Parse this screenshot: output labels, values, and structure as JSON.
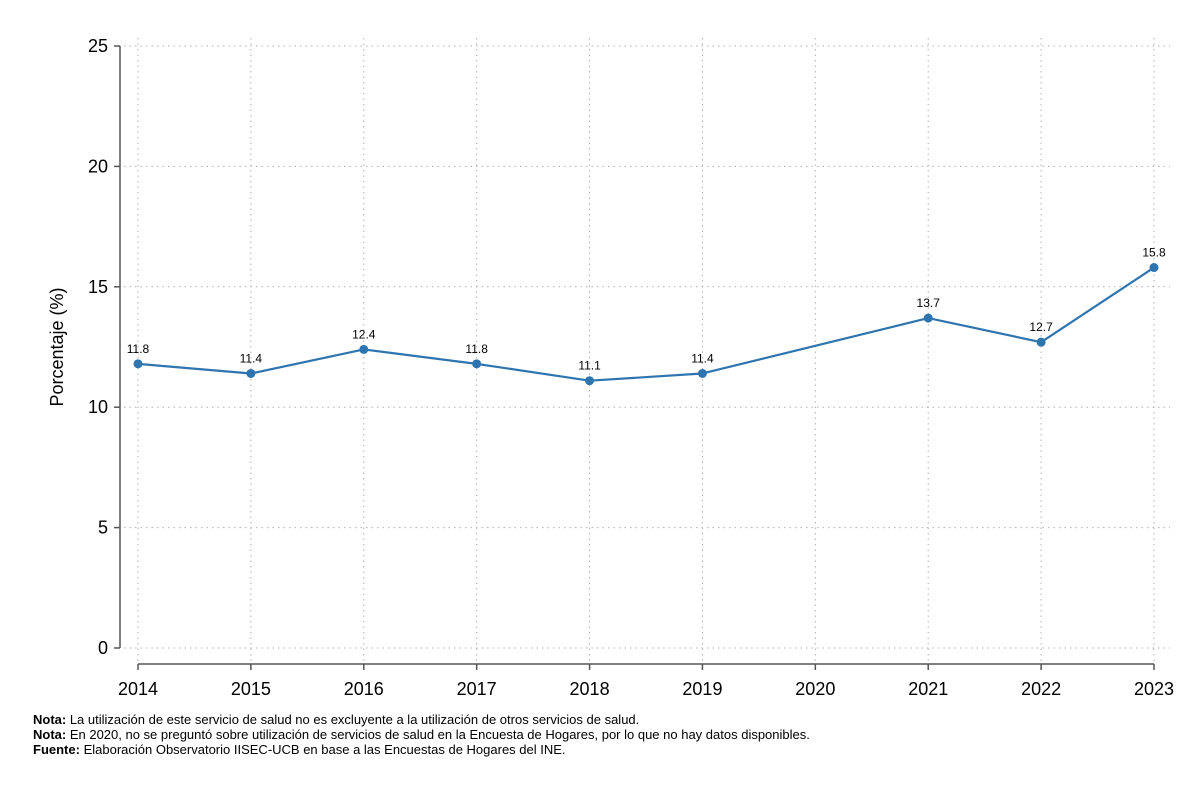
{
  "chart_data": {
    "type": "line",
    "ylabel": "Porcentaje (%)",
    "xlabel": "",
    "ylim": [
      0,
      25
    ],
    "yticks": [
      0,
      5,
      10,
      15,
      20,
      25
    ],
    "grid": true,
    "x": [
      "2014",
      "2015",
      "2016",
      "2017",
      "2018",
      "2019",
      "2020",
      "2021",
      "2022",
      "2023"
    ],
    "series": [
      {
        "values": [
          11.8,
          11.4,
          12.4,
          11.8,
          11.1,
          11.4,
          null,
          13.7,
          12.7,
          15.8
        ],
        "labels": [
          "11.8",
          "11.4",
          "12.4",
          "11.8",
          "11.1",
          "11.4",
          "",
          "13.7",
          "12.7",
          "15.8"
        ]
      }
    ],
    "colors": {
      "series": "#2e75b0",
      "grid": "#b0b0b0",
      "axis": "#555555"
    }
  },
  "notes": [
    {
      "prefix": "Nota:",
      "text": " La utilización de este servicio de salud no es excluyente a la utilización de otros servicios de salud."
    },
    {
      "prefix": "Nota:",
      "text": " En 2020, no se preguntó sobre utilización de servicios de salud en la Encuesta de Hogares, por lo que no hay datos disponibles."
    },
    {
      "prefix": "Fuente:",
      "text": " Elaboración Observatorio IISEC-UCB en base a las Encuestas de Hogares del INE."
    }
  ]
}
